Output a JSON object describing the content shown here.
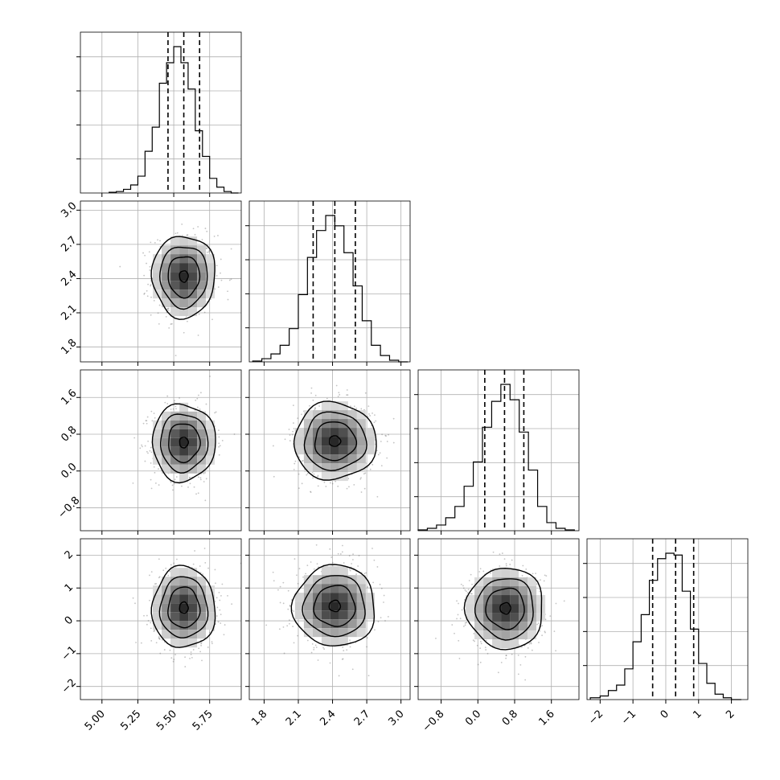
{
  "chart_data": {
    "type": "corner",
    "parameters": 4,
    "grid": true,
    "axes": [
      {
        "range": [
          4.85,
          5.97
        ],
        "ticks": [
          5.0,
          5.25,
          5.5,
          5.75
        ],
        "tick_labels": [
          "5.00",
          "5.25",
          "5.50",
          "5.75"
        ]
      },
      {
        "range": [
          1.67,
          3.08
        ],
        "ticks": [
          1.8,
          2.1,
          2.4,
          2.7,
          3.0
        ],
        "tick_labels": [
          "1.8",
          "2.1",
          "2.4",
          "2.7",
          "3.0"
        ]
      },
      {
        "range": [
          -1.3,
          2.2
        ],
        "ticks": [
          -0.8,
          0.0,
          0.8,
          1.6
        ],
        "tick_labels": [
          "−0.8",
          "0.0",
          "0.8",
          "1.6"
        ]
      },
      {
        "range": [
          -2.4,
          2.5
        ],
        "ticks": [
          -2,
          -1,
          0,
          1,
          2
        ],
        "tick_labels": [
          "−2",
          "−1",
          "0",
          "1",
          "2"
        ]
      }
    ],
    "marginals": [
      {
        "edges": [
          5.05,
          5.1,
          5.15,
          5.2,
          5.25,
          5.3,
          5.35,
          5.4,
          5.45,
          5.5,
          5.55,
          5.6,
          5.65,
          5.7,
          5.75,
          5.8,
          5.85,
          5.9,
          5.95
        ],
        "counts": [
          1,
          2,
          5,
          11,
          23,
          57,
          90,
          150,
          178,
          200,
          178,
          142,
          85,
          50,
          20,
          8,
          2,
          0
        ],
        "quantiles": [
          5.46,
          5.57,
          5.68
        ]
      },
      {
        "edges": [
          1.7,
          1.78,
          1.86,
          1.94,
          2.02,
          2.1,
          2.18,
          2.26,
          2.34,
          2.42,
          2.5,
          2.58,
          2.66,
          2.74,
          2.82,
          2.9,
          2.98,
          3.06
        ],
        "counts": [
          1,
          4,
          10,
          21,
          42,
          85,
          132,
          166,
          185,
          172,
          138,
          96,
          52,
          21,
          8,
          2,
          0
        ],
        "quantiles": [
          2.23,
          2.42,
          2.6
        ]
      },
      {
        "edges": [
          -1.3,
          -1.1,
          -0.9,
          -0.7,
          -0.5,
          -0.3,
          -0.1,
          0.1,
          0.3,
          0.5,
          0.7,
          0.9,
          1.1,
          1.3,
          1.5,
          1.7,
          1.9,
          2.1
        ],
        "counts": [
          1,
          3,
          7,
          16,
          30,
          55,
          85,
          128,
          160,
          181,
          162,
          122,
          75,
          30,
          10,
          3,
          1
        ],
        "quantiles": [
          0.15,
          0.58,
          1.0
        ]
      },
      {
        "edges": [
          -2.3,
          -2.0,
          -1.75,
          -1.5,
          -1.25,
          -1.0,
          -0.75,
          -0.5,
          -0.25,
          0.0,
          0.25,
          0.5,
          0.75,
          1.0,
          1.25,
          1.5,
          1.75,
          2.0,
          2.3
        ],
        "counts": [
          1,
          2,
          5,
          8,
          17,
          32,
          47,
          66,
          78,
          81,
          80,
          60,
          39,
          20,
          9,
          3,
          1,
          0
        ],
        "quantiles": [
          -0.4,
          0.3,
          0.85
        ]
      }
    ],
    "joints": [
      {
        "row": 1,
        "col": 0,
        "center": [
          5.57,
          2.42
        ],
        "sigma": [
          0.11,
          0.18
        ]
      },
      {
        "row": 2,
        "col": 0,
        "center": [
          5.57,
          0.62
        ],
        "sigma": [
          0.11,
          0.42
        ]
      },
      {
        "row": 2,
        "col": 1,
        "center": [
          2.42,
          0.65
        ],
        "sigma": [
          0.18,
          0.42
        ]
      },
      {
        "row": 3,
        "col": 0,
        "center": [
          5.57,
          0.4
        ],
        "sigma": [
          0.11,
          0.62
        ]
      },
      {
        "row": 3,
        "col": 1,
        "center": [
          2.42,
          0.45
        ],
        "sigma": [
          0.18,
          0.62
        ]
      },
      {
        "row": 3,
        "col": 2,
        "center": [
          0.6,
          0.38
        ],
        "sigma": [
          0.42,
          0.62
        ]
      }
    ],
    "contour_levels_sigma": [
      0.5,
      1.0,
      1.5,
      2.0
    ]
  }
}
